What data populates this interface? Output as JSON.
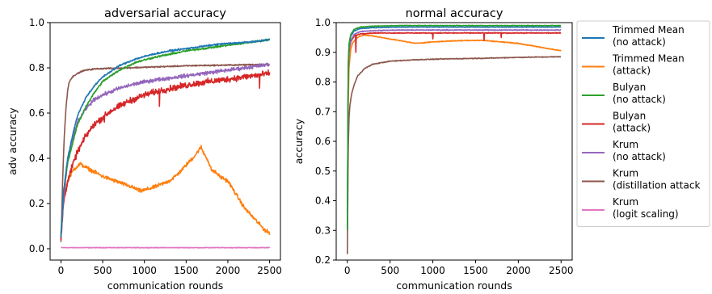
{
  "colors": {
    "tm_no": "#1f77b4",
    "tm_at": "#ff7f0e",
    "bu_no": "#2ca02c",
    "bu_at": "#d62728",
    "kr_no": "#9467bd",
    "kr_dist": "#8c564b",
    "kr_logit": "#e377c2"
  },
  "legend": {
    "placement": "outside-right",
    "entries": [
      {
        "key": "tm_no",
        "line1": "Trimmed Mean",
        "line2": "(no attack)"
      },
      {
        "key": "tm_at",
        "line1": "Trimmed Mean",
        "line2": "(attack)"
      },
      {
        "key": "bu_no",
        "line1": "Bulyan",
        "line2": "(no attack)"
      },
      {
        "key": "bu_at",
        "line1": "Bulyan",
        "line2": "(attack)"
      },
      {
        "key": "kr_no",
        "line1": "Krum",
        "line2": "(no attack)"
      },
      {
        "key": "kr_dist",
        "line1": "Krum",
        "line2": "(distillation attack"
      },
      {
        "key": "kr_logit",
        "line1": "Krum",
        "line2": "(logit scaling)"
      }
    ]
  },
  "chart_data": [
    {
      "type": "line",
      "title": "adversarial accuracy",
      "xlabel": "communication rounds",
      "ylabel": "adv accuracy",
      "xlim": [
        -130,
        2630
      ],
      "ylim": [
        -0.05,
        1.0
      ],
      "xticks": [
        0,
        500,
        1000,
        1500,
        2000,
        2500
      ],
      "yticks": [
        0.0,
        0.2,
        0.4,
        0.6,
        0.8,
        1.0
      ],
      "ytick_labels": [
        "0.0",
        "0.2",
        "0.4",
        "0.6",
        "0.8",
        "1.0"
      ],
      "grid": false,
      "series": [
        {
          "key": "kr_logit",
          "noise": 0.002,
          "x": [
            0,
            2500
          ],
          "y": [
            0.005,
            0.005
          ]
        },
        {
          "key": "tm_at",
          "noise": 0.012,
          "x": [
            0,
            30,
            80,
            150,
            230,
            300,
            400,
            500,
            650,
            800,
            900,
            950,
            1100,
            1200,
            1300,
            1400,
            1500,
            1600,
            1680,
            1700,
            1750,
            1800,
            1880,
            1900,
            2000,
            2100,
            2200,
            2300,
            2400,
            2450,
            2500
          ],
          "y": [
            0.07,
            0.22,
            0.3,
            0.35,
            0.375,
            0.36,
            0.34,
            0.32,
            0.3,
            0.28,
            0.265,
            0.255,
            0.27,
            0.285,
            0.3,
            0.33,
            0.37,
            0.41,
            0.45,
            0.43,
            0.4,
            0.35,
            0.33,
            0.32,
            0.3,
            0.24,
            0.18,
            0.14,
            0.1,
            0.08,
            0.07
          ]
        },
        {
          "key": "kr_dist",
          "noise": 0.004,
          "x": [
            0,
            20,
            40,
            60,
            80,
            100,
            150,
            200,
            250,
            300,
            400,
            500,
            800,
            1200,
            1600,
            2000,
            2400,
            2500
          ],
          "y": [
            0.03,
            0.3,
            0.5,
            0.62,
            0.7,
            0.74,
            0.765,
            0.775,
            0.785,
            0.79,
            0.795,
            0.797,
            0.8,
            0.805,
            0.81,
            0.812,
            0.815,
            0.815
          ]
        },
        {
          "key": "bu_at",
          "noise": 0.02,
          "dips": [
            [
              430,
              0.49
            ],
            [
              520,
              0.56
            ],
            [
              750,
              0.45
            ],
            [
              1010,
              0.54
            ],
            [
              1180,
              0.63
            ],
            [
              1480,
              0.72
            ],
            [
              2380,
              0.71
            ]
          ],
          "x": [
            0,
            30,
            80,
            150,
            200,
            300,
            400,
            500,
            600,
            700,
            800,
            1000,
            1200,
            1400,
            1600,
            1800,
            2000,
            2200,
            2400,
            2500
          ],
          "y": [
            0.04,
            0.2,
            0.3,
            0.38,
            0.43,
            0.5,
            0.55,
            0.58,
            0.61,
            0.63,
            0.65,
            0.68,
            0.7,
            0.715,
            0.73,
            0.74,
            0.75,
            0.76,
            0.77,
            0.775
          ]
        },
        {
          "key": "kr_no",
          "noise": 0.012,
          "x": [
            0,
            30,
            80,
            150,
            200,
            300,
            400,
            500,
            700,
            900,
            1100,
            1300,
            1500,
            1700,
            1900,
            2100,
            2300,
            2500
          ],
          "y": [
            0.05,
            0.22,
            0.38,
            0.5,
            0.56,
            0.62,
            0.66,
            0.68,
            0.71,
            0.73,
            0.745,
            0.755,
            0.765,
            0.775,
            0.785,
            0.795,
            0.805,
            0.815
          ]
        },
        {
          "key": "bu_no",
          "noise": 0.006,
          "x": [
            0,
            30,
            80,
            150,
            200,
            300,
            400,
            500,
            700,
            900,
            1100,
            1300,
            1500,
            1700,
            1900,
            2100,
            2300,
            2500
          ],
          "y": [
            0.05,
            0.25,
            0.38,
            0.48,
            0.55,
            0.63,
            0.69,
            0.74,
            0.79,
            0.825,
            0.845,
            0.86,
            0.875,
            0.885,
            0.895,
            0.905,
            0.915,
            0.925
          ]
        },
        {
          "key": "tm_no",
          "noise": 0.005,
          "x": [
            0,
            30,
            80,
            150,
            200,
            300,
            400,
            500,
            700,
            900,
            1100,
            1300,
            1500,
            1700,
            1900,
            2100,
            2300,
            2500
          ],
          "y": [
            0.05,
            0.25,
            0.4,
            0.52,
            0.59,
            0.67,
            0.72,
            0.76,
            0.81,
            0.84,
            0.86,
            0.875,
            0.885,
            0.895,
            0.905,
            0.91,
            0.915,
            0.925
          ]
        }
      ]
    },
    {
      "type": "line",
      "title": "normal accuracy",
      "xlabel": "communication rounds",
      "ylabel": "accuracy",
      "xlim": [
        -130,
        2630
      ],
      "ylim": [
        0.2,
        1.0
      ],
      "xticks": [
        0,
        500,
        1000,
        1500,
        2000,
        2500
      ],
      "yticks": [
        0.2,
        0.3,
        0.4,
        0.5,
        0.6,
        0.7,
        0.8,
        0.9,
        1.0
      ],
      "ytick_labels": [
        "0.2",
        "0.3",
        "0.4",
        "0.5",
        "0.6",
        "0.7",
        "0.8",
        "0.9",
        "1.0"
      ],
      "grid": false,
      "series": [
        {
          "key": "kr_dist",
          "noise": 0.002,
          "x": [
            0,
            10,
            20,
            30,
            50,
            80,
            120,
            200,
            300,
            500,
            800,
            1200,
            1600,
            2000,
            2500
          ],
          "y": [
            0.22,
            0.55,
            0.68,
            0.72,
            0.76,
            0.79,
            0.82,
            0.845,
            0.86,
            0.87,
            0.875,
            0.878,
            0.88,
            0.883,
            0.885
          ]
        },
        {
          "key": "tm_at",
          "noise": 0.002,
          "x": [
            0,
            10,
            20,
            40,
            60,
            100,
            150,
            200,
            300,
            400,
            500,
            600,
            700,
            800,
            1000,
            1200,
            1400,
            1600,
            1800,
            2000,
            2200,
            2400,
            2500
          ],
          "y": [
            0.3,
            0.7,
            0.85,
            0.91,
            0.93,
            0.945,
            0.955,
            0.958,
            0.955,
            0.95,
            0.945,
            0.94,
            0.935,
            0.93,
            0.935,
            0.938,
            0.94,
            0.94,
            0.935,
            0.93,
            0.92,
            0.91,
            0.905
          ]
        },
        {
          "key": "bu_at",
          "noise": 0.002,
          "dips": [
            [
              100,
              0.9
            ],
            [
              750,
              0.94
            ],
            [
              1000,
              0.945
            ],
            [
              1600,
              0.94
            ],
            [
              1800,
              0.95
            ],
            [
              2330,
              0.945
            ]
          ],
          "x": [
            0,
            10,
            20,
            40,
            80,
            150,
            300,
            600,
            1000,
            1500,
            2000,
            2500
          ],
          "y": [
            0.3,
            0.8,
            0.9,
            0.935,
            0.955,
            0.962,
            0.965,
            0.965,
            0.965,
            0.965,
            0.965,
            0.965
          ]
        },
        {
          "key": "kr_no",
          "noise": 0.002,
          "x": [
            0,
            10,
            20,
            40,
            80,
            150,
            300,
            600,
            1000,
            1500,
            2000,
            2500
          ],
          "y": [
            0.3,
            0.82,
            0.91,
            0.94,
            0.96,
            0.97,
            0.973,
            0.975,
            0.975,
            0.975,
            0.975,
            0.975
          ]
        },
        {
          "key": "tm_no",
          "noise": 0.0015,
          "x": [
            0,
            10,
            20,
            40,
            80,
            150,
            300,
            600,
            1000,
            1500,
            2000,
            2500
          ],
          "y": [
            0.3,
            0.84,
            0.92,
            0.955,
            0.972,
            0.98,
            0.983,
            0.985,
            0.985,
            0.985,
            0.985,
            0.985
          ]
        },
        {
          "key": "bu_no",
          "noise": 0.0015,
          "x": [
            0,
            10,
            20,
            40,
            80,
            150,
            300,
            600,
            1000,
            1500,
            2000,
            2500
          ],
          "y": [
            0.3,
            0.85,
            0.93,
            0.96,
            0.978,
            0.985,
            0.988,
            0.99,
            0.99,
            0.99,
            0.99,
            0.99
          ]
        }
      ]
    }
  ]
}
